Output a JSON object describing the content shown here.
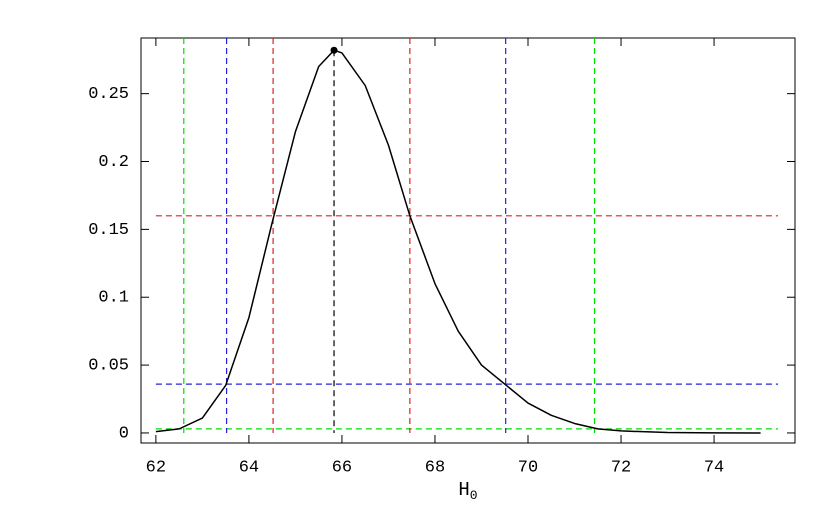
{
  "chart_data": {
    "type": "line",
    "xlabel": "H",
    "xlabel_subscript": "0",
    "x": [
      62,
      62.5,
      63,
      63.5,
      64,
      64.5,
      65,
      65.5,
      65.83,
      66,
      66.5,
      67,
      67.46,
      68,
      68.5,
      69,
      69.5,
      70,
      70.5,
      71,
      71.5,
      72,
      73,
      74,
      75
    ],
    "series": [
      {
        "color": "#000000",
        "values": [
          0.001,
          0.003,
          0.011,
          0.035,
          0.085,
          0.155,
          0.222,
          0.27,
          0.282,
          0.28,
          0.256,
          0.212,
          0.16,
          0.11,
          0.075,
          0.05,
          0.036,
          0.022,
          0.013,
          0.007,
          0.003,
          0.0015,
          0.0003,
          0.0001,
          0
        ]
      }
    ],
    "peak": {
      "x": 65.83,
      "y": 0.282,
      "color": "#000000"
    },
    "vlines": [
      {
        "value": 62.6,
        "color": "#00dd00"
      },
      {
        "value": 71.43,
        "color": "#00dd00"
      },
      {
        "value": 63.52,
        "color": "#2222dd"
      },
      {
        "value": 69.52,
        "color": "#2222dd"
      },
      {
        "value": 64.52,
        "color": "#dd2222"
      },
      {
        "value": 67.46,
        "color": "#dd2222"
      }
    ],
    "hlines": [
      {
        "value": 0.16,
        "color": "#dd2222"
      },
      {
        "value": 0.036,
        "color": "#2222dd"
      },
      {
        "value": 0.003,
        "color": "#00dd00"
      }
    ],
    "xlim": [
      61.68,
      75.74
    ],
    "ylim": [
      -0.0074,
      0.291
    ],
    "xticks": [
      62,
      64,
      66,
      68,
      70,
      72,
      74
    ],
    "yticks": [
      0,
      0.05,
      0.1,
      0.15,
      0.2,
      0.25
    ]
  }
}
